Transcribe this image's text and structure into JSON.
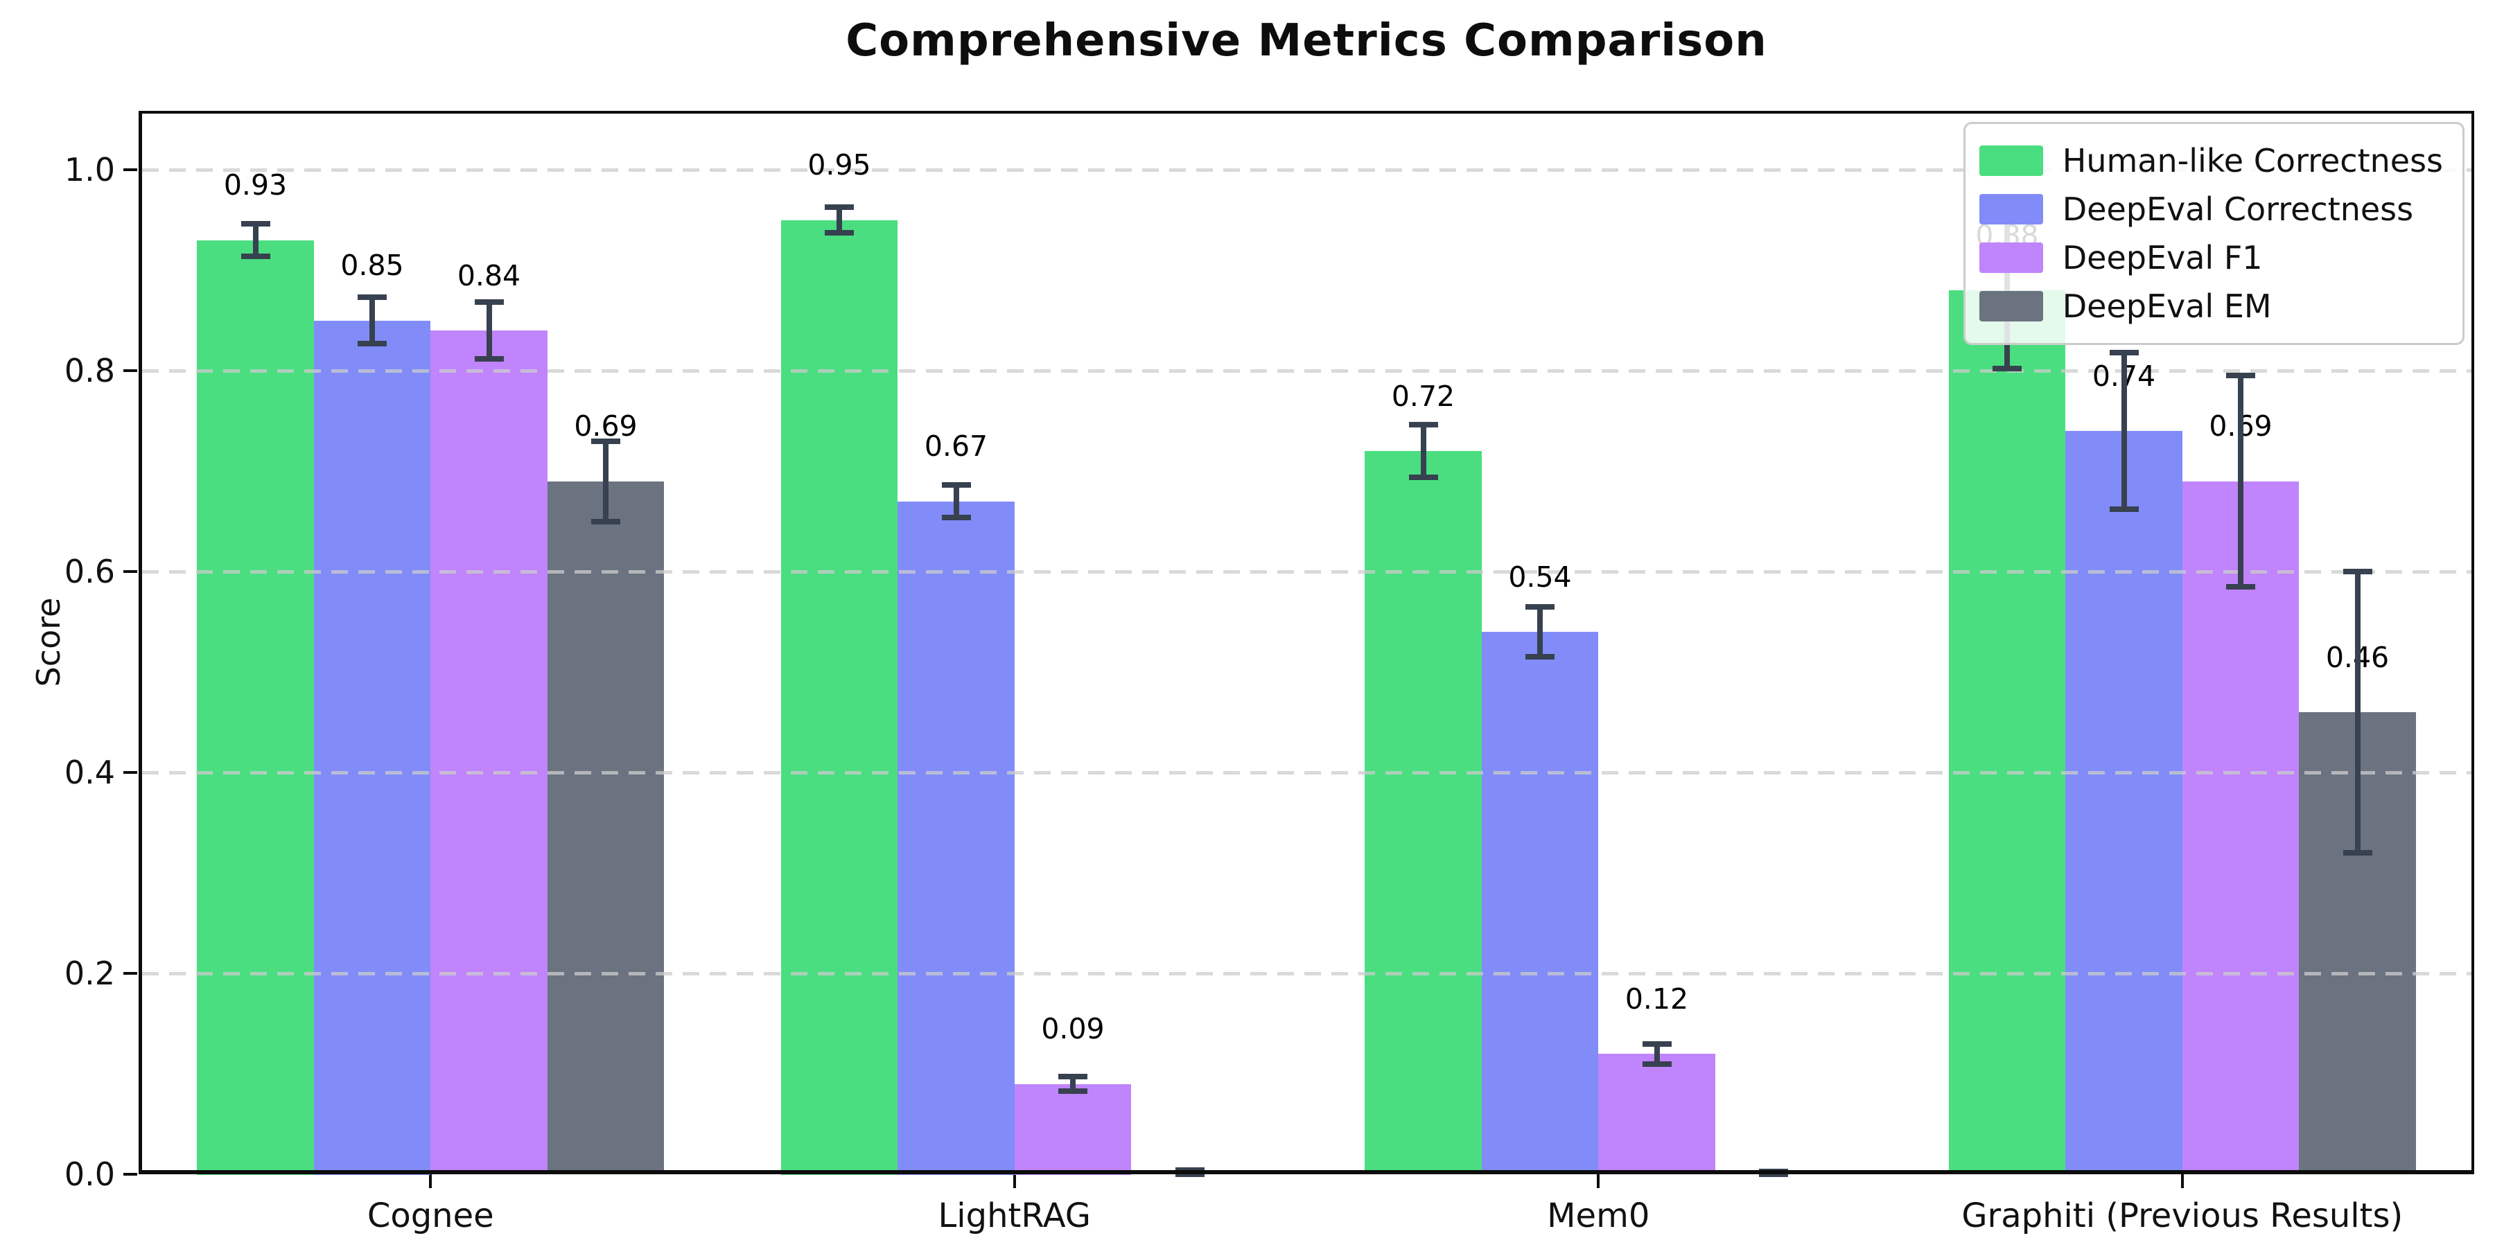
{
  "chart_data": {
    "type": "bar",
    "title": "Comprehensive Metrics Comparison",
    "ylabel": "Score",
    "xlabel": "",
    "categories": [
      "Cognee",
      "LightRAG",
      "Mem0",
      "Graphiti (Previous Results)"
    ],
    "series": [
      {
        "name": "Human-like Correctness",
        "color": "#4ade80",
        "values": [
          0.93,
          0.95,
          0.72,
          0.88
        ],
        "errors": [
          0.016,
          0.013,
          0.026,
          0.078
        ],
        "labels": [
          "0.93",
          "0.95",
          "0.72",
          "0.88"
        ]
      },
      {
        "name": "DeepEval Correctness",
        "color": "#818cf8",
        "values": [
          0.85,
          0.67,
          0.54,
          0.74
        ],
        "errors": [
          0.023,
          0.016,
          0.025,
          0.078
        ],
        "labels": [
          "0.85",
          "0.67",
          "0.54",
          "0.74"
        ]
      },
      {
        "name": "DeepEval F1",
        "color": "#c084fc",
        "values": [
          0.84,
          0.09,
          0.12,
          0.69
        ],
        "errors": [
          0.028,
          0.007,
          0.01,
          0.105
        ],
        "labels": [
          "0.84",
          "0.09",
          "0.12",
          "0.69"
        ]
      },
      {
        "name": "DeepEval EM",
        "color": "#6b7280",
        "values": [
          0.69,
          0.0,
          0.0,
          0.46
        ],
        "errors": [
          0.04,
          0.004,
          0.003,
          0.14
        ],
        "labels": [
          "0.69",
          "",
          "",
          "0.46"
        ]
      }
    ],
    "ylim": [
      0.0,
      1.06
    ],
    "yticks": [
      "0.0",
      "0.2",
      "0.4",
      "0.6",
      "0.8",
      "1.0"
    ],
    "grid": "horizontal dashed",
    "legend_position": "upper right",
    "error_bar_color": "#37414f",
    "background_color": "#ffffff"
  }
}
